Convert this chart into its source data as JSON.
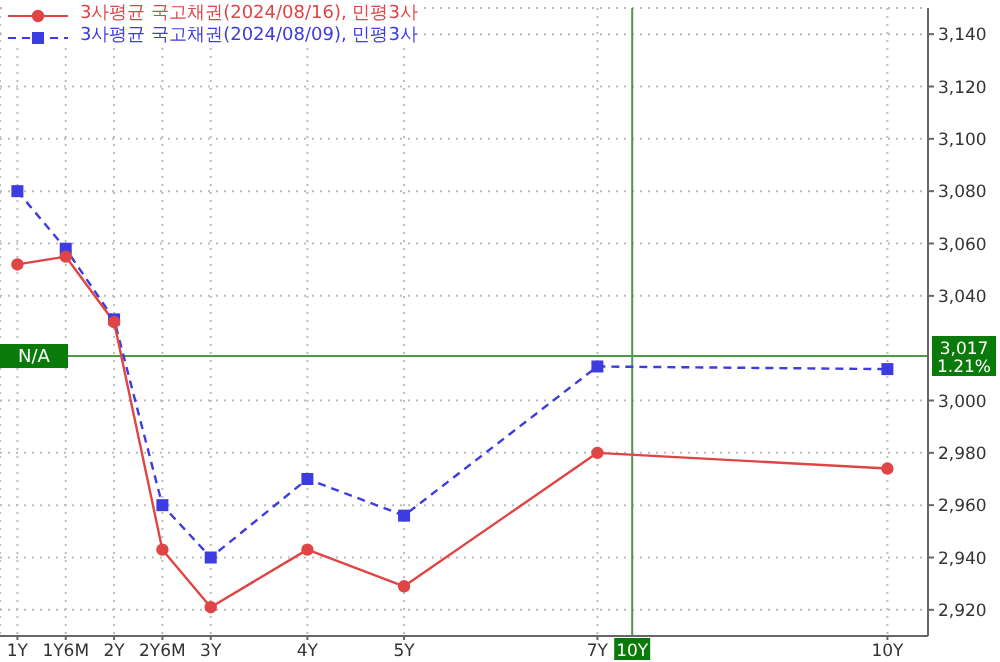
{
  "chart_data": {
    "type": "line",
    "x": [
      1,
      1.5,
      2,
      2.5,
      3,
      4,
      5,
      7,
      10
    ],
    "series": [
      {
        "name": "3사평균 국고채권(2024/08/16), 민평3사",
        "color": "#e04545",
        "marker": "circle",
        "line_style": "solid",
        "values": [
          3052,
          3055,
          3030,
          2943,
          2921,
          2943,
          2929,
          2980,
          2974
        ]
      },
      {
        "name": "3사평균 국고채권(2024/08/09), 민평3사",
        "color": "#3c3ce0",
        "marker": "square",
        "line_style": "dashed",
        "values": [
          3080,
          3058,
          3031,
          2960,
          2940,
          2970,
          2956,
          3013,
          3012
        ]
      }
    ],
    "xlim": [
      0.82,
      10.42
    ],
    "xticks": [
      {
        "value": 1,
        "label": "1Y"
      },
      {
        "value": 1.5,
        "label": "1Y6M"
      },
      {
        "value": 2,
        "label": "2Y"
      },
      {
        "value": 2.5,
        "label": "2Y6M"
      },
      {
        "value": 3,
        "label": "3Y"
      },
      {
        "value": 4,
        "label": "4Y"
      },
      {
        "value": 5,
        "label": "5Y"
      },
      {
        "value": 7,
        "label": "7Y"
      },
      {
        "value": 10,
        "label": "10Y"
      }
    ],
    "ylim": [
      2910,
      3150
    ],
    "yticks": [
      {
        "value": 2920,
        "label": "2,920"
      },
      {
        "value": 2940,
        "label": "2,940"
      },
      {
        "value": 2960,
        "label": "2,960"
      },
      {
        "value": 2980,
        "label": "2,980"
      },
      {
        "value": 3000,
        "label": "3,000"
      },
      {
        "value": 3040,
        "label": "3,040"
      },
      {
        "value": 3060,
        "label": "3,060"
      },
      {
        "value": 3080,
        "label": "3,080"
      },
      {
        "value": 3100,
        "label": "3,100"
      },
      {
        "value": 3120,
        "label": "3,120"
      },
      {
        "value": 3140,
        "label": "3,140"
      }
    ],
    "ref_lines": [
      {
        "axis": "y",
        "value": 3017,
        "label": "3,017\n1.21%",
        "color": "#4a9a4a"
      },
      {
        "axis": "x",
        "value": 7.36,
        "label": "10Y",
        "color": "#4a9a4a"
      }
    ],
    "annotations": [
      "N/A"
    ],
    "grid": true,
    "legend": "top left"
  }
}
